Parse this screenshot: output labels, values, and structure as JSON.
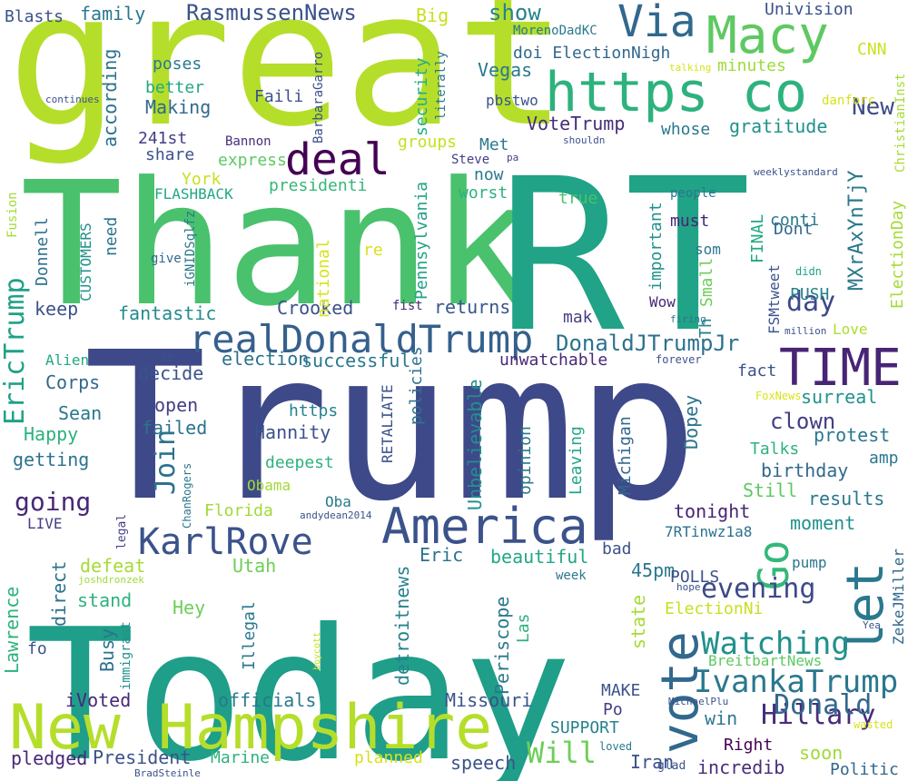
{
  "cloud": {
    "background": "#ffffff",
    "words": [
      {
        "text": "great",
        "color": "#b5de2b"
      },
      {
        "text": "Thank",
        "color": "#4ac16d"
      },
      {
        "text": "RT",
        "color": "#20a386"
      },
      {
        "text": "Trump",
        "color": "#3e4989"
      },
      {
        "text": "Today",
        "color": "#1f9e89"
      },
      {
        "text": "New Hampshire",
        "color": "#b5de2b"
      },
      {
        "text": "America",
        "color": "#3b528b"
      },
      {
        "text": "Via",
        "color": "#31688e"
      },
      {
        "text": "Macy",
        "color": "#5ec962"
      },
      {
        "text": "https co",
        "color": "#2db27d"
      },
      {
        "text": "deal",
        "color": "#440154"
      },
      {
        "text": "realDonaldTrump",
        "color": "#35608d"
      },
      {
        "text": "TIME",
        "color": "#482475"
      },
      {
        "text": "KarlRove",
        "color": "#3b528b"
      },
      {
        "text": "vote",
        "color": "#31688e"
      },
      {
        "text": "let",
        "color": "#2a788e"
      },
      {
        "text": "Go",
        "color": "#35b779"
      },
      {
        "text": "IvankaTrump",
        "color": "#2a788e"
      },
      {
        "text": "Watching",
        "color": "#21918c"
      },
      {
        "text": "Hillary",
        "color": "#472d7b"
      },
      {
        "text": "Donald",
        "color": "#31688e"
      },
      {
        "text": "evening",
        "color": "#3e4989"
      },
      {
        "text": "Will",
        "color": "#6ece58"
      },
      {
        "text": "EricTrump",
        "color": "#1fa187"
      },
      {
        "text": "going",
        "color": "#482878"
      },
      {
        "text": "DonaldJTrumpJr",
        "color": "#2c728e"
      },
      {
        "text": "RasmussenNews",
        "color": "#3b528b"
      },
      {
        "text": "day",
        "color": "#3e4989"
      },
      {
        "text": "MXrAxYnTjY",
        "color": "#2a788e"
      },
      {
        "text": "New",
        "color": "#3e4989"
      },
      {
        "text": "Join",
        "color": "#2c728e"
      },
      {
        "text": "clown",
        "color": "#433e85"
      },
      {
        "text": "Crooked",
        "color": "#3b528b"
      },
      {
        "text": "successful",
        "color": "#2a788e"
      },
      {
        "text": "election",
        "color": "#2c728e"
      },
      {
        "text": "fantastic",
        "color": "#23898e"
      },
      {
        "text": "keep",
        "color": "#3b528b"
      },
      {
        "text": "returns",
        "color": "#39568c"
      },
      {
        "text": "show",
        "color": "#26828e"
      },
      {
        "text": "Big",
        "color": "#c8e020"
      },
      {
        "text": "family",
        "color": "#2a788e"
      },
      {
        "text": "Blasts",
        "color": "#3b528b"
      },
      {
        "text": "Univision",
        "color": "#3b528b"
      },
      {
        "text": "CNN",
        "color": "#cae11f"
      },
      {
        "text": "gratitude",
        "color": "#21918c"
      },
      {
        "text": "whose",
        "color": "#2a788e"
      },
      {
        "text": "VoteTrump",
        "color": "#472c7a"
      },
      {
        "text": "Vegas",
        "color": "#2a788e"
      },
      {
        "text": "doi ElectionNigh",
        "color": "#31688e"
      },
      {
        "text": "minutes",
        "color": "#a0da39"
      },
      {
        "text": "poses",
        "color": "#2a788e"
      },
      {
        "text": "better",
        "color": "#22a785"
      },
      {
        "text": "Making",
        "color": "#31688e"
      },
      {
        "text": "according",
        "color": "#2c728e"
      },
      {
        "text": "Faili",
        "color": "#3b528b"
      },
      {
        "text": "security",
        "color": "#26ad81"
      },
      {
        "text": "literally",
        "color": "#2a788e"
      },
      {
        "text": "pbstwo",
        "color": "#3b528b"
      },
      {
        "text": "MorenoDadKC",
        "color": "#2a788e"
      },
      {
        "text": "BarbaraGarro",
        "color": "#3b528b"
      },
      {
        "text": "241st",
        "color": "#433e85"
      },
      {
        "text": "share",
        "color": "#3b528b"
      },
      {
        "text": "express",
        "color": "#5ec962"
      },
      {
        "text": "York",
        "color": "#c8e020"
      },
      {
        "text": "groups",
        "color": "#c8e020"
      },
      {
        "text": "Met",
        "color": "#2a788e"
      },
      {
        "text": "now",
        "color": "#2a788e"
      },
      {
        "text": "worst",
        "color": "#2db27d"
      },
      {
        "text": "presidenti",
        "color": "#35b779"
      },
      {
        "text": "Bannon",
        "color": "#472d7b"
      },
      {
        "text": "FLASHBACK",
        "color": "#22a785"
      },
      {
        "text": "Pennsylvania",
        "color": "#20a386"
      },
      {
        "text": "national",
        "color": "#d8e219"
      },
      {
        "text": "true",
        "color": "#4ac16d"
      },
      {
        "text": "re",
        "color": "#d8e219"
      },
      {
        "text": "Steve",
        "color": "#433e85"
      },
      {
        "text": "people",
        "color": "#2a788e"
      },
      {
        "text": "must",
        "color": "#482475"
      },
      {
        "text": "conti",
        "color": "#2a788e"
      },
      {
        "text": "Dont",
        "color": "#31688e"
      },
      {
        "text": "PUSH",
        "color": "#26828e"
      },
      {
        "text": "FINAL",
        "color": "#22a785"
      },
      {
        "text": "ElectionDay",
        "color": "#a5db36"
      },
      {
        "text": "important",
        "color": "#21918c"
      },
      {
        "text": "Small",
        "color": "#6ece58"
      },
      {
        "text": "som",
        "color": "#2a788e"
      },
      {
        "text": "Th",
        "color": "#26828e"
      },
      {
        "text": "FSMtweet",
        "color": "#3b528b"
      },
      {
        "text": "Love",
        "color": "#addc30"
      },
      {
        "text": "Wow",
        "color": "#482878"
      },
      {
        "text": "mak",
        "color": "#433e85"
      },
      {
        "text": "need",
        "color": "#2c728e"
      },
      {
        "text": "CUSTOMERS",
        "color": "#21918c"
      },
      {
        "text": "Donnell",
        "color": "#2c728e"
      },
      {
        "text": "iGNIDSqlfz",
        "color": "#2a788e"
      },
      {
        "text": "give",
        "color": "#31688e"
      },
      {
        "text": "Fusion",
        "color": "#a5db36"
      },
      {
        "text": "Alien",
        "color": "#22a785"
      },
      {
        "text": "Corps",
        "color": "#31688e"
      },
      {
        "text": "Sean",
        "color": "#2a788e"
      },
      {
        "text": "Happy",
        "color": "#2db27d"
      },
      {
        "text": "getting",
        "color": "#2c728e"
      },
      {
        "text": "decide",
        "color": "#3b528b"
      },
      {
        "text": "open",
        "color": "#433e85"
      },
      {
        "text": "failed",
        "color": "#2c728e"
      },
      {
        "text": "Hannity",
        "color": "#3b528b"
      },
      {
        "text": "https",
        "color": "#26828e"
      },
      {
        "text": "deepest",
        "color": "#2db27d"
      },
      {
        "text": "Obama",
        "color": "#a0da39"
      },
      {
        "text": "Oba",
        "color": "#2a788e"
      },
      {
        "text": "Florida",
        "color": "#a0da39"
      },
      {
        "text": "LIVE",
        "color": "#433e85"
      },
      {
        "text": "policies",
        "color": "#2c728e"
      },
      {
        "text": "RETALIATE",
        "color": "#3b528b"
      },
      {
        "text": "Unbelievable",
        "color": "#21918c"
      },
      {
        "text": "unwatchable",
        "color": "#482878"
      },
      {
        "text": "opinion",
        "color": "#2a788e"
      },
      {
        "text": "Leaving",
        "color": "#22a785"
      },
      {
        "text": "Michigan",
        "color": "#31688e"
      },
      {
        "text": "Dopey",
        "color": "#2c728e"
      },
      {
        "text": "fact",
        "color": "#3b528b"
      },
      {
        "text": "surreal",
        "color": "#21918c"
      },
      {
        "text": "protest",
        "color": "#2a788e"
      },
      {
        "text": "amp",
        "color": "#2a788e"
      },
      {
        "text": "Talks",
        "color": "#2db27d"
      },
      {
        "text": "birthday",
        "color": "#31688e"
      },
      {
        "text": "Still",
        "color": "#5ec962"
      },
      {
        "text": "results",
        "color": "#2a788e"
      },
      {
        "text": "tonight",
        "color": "#482475"
      },
      {
        "text": "moment",
        "color": "#21918c"
      },
      {
        "text": "7RTinwz1a8",
        "color": "#2c728e"
      },
      {
        "text": "Im",
        "color": "#3b528b"
      },
      {
        "text": "forever",
        "color": "#3b528b"
      },
      {
        "text": "FoxNews",
        "color": "#d8e219"
      },
      {
        "text": "million",
        "color": "#3b528b"
      },
      {
        "text": "firing",
        "color": "#2a788e"
      },
      {
        "text": "didn",
        "color": "#1fa187"
      },
      {
        "text": "weeklystandard",
        "color": "#3b528b"
      },
      {
        "text": "ChristianInst",
        "color": "#a5db36"
      },
      {
        "text": "danforc",
        "color": "#d8e219"
      },
      {
        "text": "talking",
        "color": "#d8e219"
      },
      {
        "text": "shouldn",
        "color": "#3b528b"
      },
      {
        "text": "pa",
        "color": "#433e85"
      },
      {
        "text": "continues",
        "color": "#3b528b"
      },
      {
        "text": "fist",
        "color": "#482878"
      },
      {
        "text": "Eric",
        "color": "#2c728e"
      },
      {
        "text": "beautiful",
        "color": "#22a785"
      },
      {
        "text": "bad",
        "color": "#3b528b"
      },
      {
        "text": "45pm",
        "color": "#2a788e"
      },
      {
        "text": "POLLS",
        "color": "#3b528b"
      },
      {
        "text": "defeat",
        "color": "#a5db36"
      },
      {
        "text": "Utah",
        "color": "#6ece58"
      },
      {
        "text": "Lawrence",
        "color": "#2db27d"
      },
      {
        "text": "direct",
        "color": "#2c728e"
      },
      {
        "text": "stand",
        "color": "#2db27d"
      },
      {
        "text": "fo",
        "color": "#3b528b"
      },
      {
        "text": "Busy",
        "color": "#2c728e"
      },
      {
        "text": "Hey",
        "color": "#6ece58"
      },
      {
        "text": "Illegal",
        "color": "#2a788e"
      },
      {
        "text": "immigrant",
        "color": "#21918c"
      },
      {
        "text": "detroitnews",
        "color": "#26828e"
      },
      {
        "text": "Periscope",
        "color": "#2a788e"
      },
      {
        "text": "Las",
        "color": "#2db27d"
      },
      {
        "text": "state",
        "color": "#a5db36"
      },
      {
        "text": "ElectionNi",
        "color": "#c8e020"
      },
      {
        "text": "pump",
        "color": "#2a788e"
      },
      {
        "text": "ZekeJMiller",
        "color": "#31688e"
      },
      {
        "text": "BreitbartNews",
        "color": "#5ec962"
      },
      {
        "text": "hope",
        "color": "#3b528b"
      },
      {
        "text": "week",
        "color": "#2a788e"
      },
      {
        "text": "joshdronzek",
        "color": "#a0da39"
      },
      {
        "text": "legal",
        "color": "#433e85"
      },
      {
        "text": "ChanRogers",
        "color": "#2a788e"
      },
      {
        "text": "andydean2014",
        "color": "#3b528b"
      },
      {
        "text": "boycott",
        "color": "#c8e020"
      },
      {
        "text": "MAKE",
        "color": "#3b528b"
      },
      {
        "text": "Po",
        "color": "#433e85"
      },
      {
        "text": "iVoted",
        "color": "#482878"
      },
      {
        "text": "officials",
        "color": "#2a788e"
      },
      {
        "text": "Missouri",
        "color": "#3b528b"
      },
      {
        "text": "SUPPORT",
        "color": "#26828e"
      },
      {
        "text": "MichaelPlu",
        "color": "#3b528b"
      },
      {
        "text": "Yea",
        "color": "#3b528b"
      },
      {
        "text": "wasted",
        "color": "#d8e219"
      },
      {
        "text": "win",
        "color": "#2a788e"
      },
      {
        "text": "Right",
        "color": "#440154"
      },
      {
        "text": "soon",
        "color": "#a0da39"
      },
      {
        "text": "Politic",
        "color": "#31688e"
      },
      {
        "text": "Iran",
        "color": "#3b528b"
      },
      {
        "text": "incredib",
        "color": "#472d7b"
      },
      {
        "text": "glad",
        "color": "#3b528b"
      },
      {
        "text": "loved",
        "color": "#2a788e"
      },
      {
        "text": "pledged",
        "color": "#482878"
      },
      {
        "text": "President",
        "color": "#3b528b"
      },
      {
        "text": "Marine",
        "color": "#2db27d"
      },
      {
        "text": "planned",
        "color": "#d8e219"
      },
      {
        "text": "speech",
        "color": "#3b528b"
      },
      {
        "text": "BradSteinle",
        "color": "#3b528b"
      }
    ]
  }
}
